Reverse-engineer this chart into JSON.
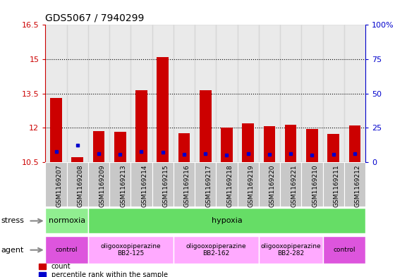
{
  "title": "GDS5067 / 7940299",
  "samples": [
    "GSM1169207",
    "GSM1169208",
    "GSM1169209",
    "GSM1169213",
    "GSM1169214",
    "GSM1169215",
    "GSM1169216",
    "GSM1169217",
    "GSM1169218",
    "GSM1169219",
    "GSM1169220",
    "GSM1169221",
    "GSM1169210",
    "GSM1169211",
    "GSM1169212"
  ],
  "count_values": [
    13.3,
    10.72,
    11.85,
    11.82,
    13.65,
    15.08,
    11.75,
    13.65,
    12.02,
    12.2,
    12.07,
    12.12,
    11.95,
    11.72,
    12.1
  ],
  "baseline": 10.5,
  "blue_y_values": [
    10.95,
    11.25,
    10.88,
    10.85,
    10.95,
    10.92,
    10.85,
    10.88,
    10.82,
    10.88,
    10.85,
    10.88,
    10.82,
    10.85,
    10.88
  ],
  "ylim_left": [
    10.5,
    16.5
  ],
  "ylim_right": [
    0,
    100
  ],
  "yticks_left": [
    10.5,
    12.0,
    13.5,
    15.0,
    16.5
  ],
  "yticks_right": [
    0,
    25,
    50,
    75,
    100
  ],
  "ytick_labels_left": [
    "10.5",
    "12",
    "13.5",
    "15",
    "16.5"
  ],
  "ytick_labels_right": [
    "0",
    "25",
    "50",
    "75",
    "100%"
  ],
  "grid_lines": [
    12.0,
    13.5,
    15.0
  ],
  "stress_groups": [
    {
      "label": "normoxia",
      "start": 0,
      "end": 2,
      "color": "#90EE90"
    },
    {
      "label": "hypoxia",
      "start": 2,
      "end": 15,
      "color": "#66DD66"
    }
  ],
  "agent_groups": [
    {
      "label": "control",
      "start": 0,
      "end": 2,
      "color": "#DD55DD"
    },
    {
      "label": "oligooxopiperazine\nBB2-125",
      "start": 2,
      "end": 6,
      "color": "#FFAAFF"
    },
    {
      "label": "oligooxopiperazine\nBB2-162",
      "start": 6,
      "end": 10,
      "color": "#FFAAFF"
    },
    {
      "label": "oligooxopiperazine\nBB2-282",
      "start": 10,
      "end": 13,
      "color": "#FFAAFF"
    },
    {
      "label": "control",
      "start": 13,
      "end": 15,
      "color": "#DD55DD"
    }
  ],
  "bar_color": "#CC0000",
  "blue_color": "#0000CC",
  "bar_width": 0.55,
  "col_bg": "#C8C8C8"
}
